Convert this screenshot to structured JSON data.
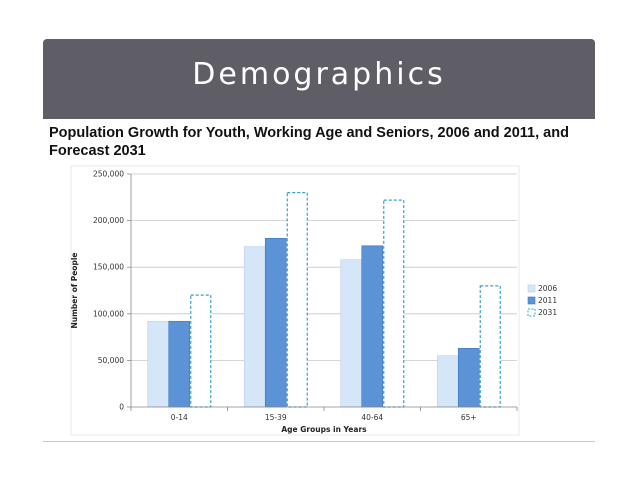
{
  "slide": {
    "title": "Demographics",
    "subtitle": "Population Growth for Youth, Working Age and Seniors, 2006 and 2011, and Forecast 2031"
  },
  "colors": {
    "banner": "#5f5e66",
    "series_2006_fill": "#d6e6f9",
    "series_2011_fill": "#5b93d6",
    "series_2031_stroke": "#3a9ec9"
  },
  "chart_data": {
    "type": "bar",
    "categories": [
      "0-14",
      "15-39",
      "40-64",
      "65+"
    ],
    "series": [
      {
        "name": "2006",
        "values": [
          92000,
          172000,
          158000,
          55000
        ]
      },
      {
        "name": "2011",
        "values": [
          92000,
          181000,
          173000,
          63000
        ]
      },
      {
        "name": "2031",
        "values": [
          120000,
          230000,
          222000,
          130000
        ]
      }
    ],
    "ylim": [
      0,
      250000
    ],
    "yticks": [
      0,
      50000,
      100000,
      150000,
      200000,
      250000
    ],
    "ytick_labels": [
      "0",
      "50,000",
      "100,000",
      "150,000",
      "200,000",
      "250,000"
    ],
    "xlabel": "Age Groups in Years",
    "ylabel": "Number of People",
    "grid": true,
    "legend_position": "right",
    "style": {
      "2006": "light-solid",
      "2011": "solid",
      "2031": "dashed-outline"
    }
  }
}
